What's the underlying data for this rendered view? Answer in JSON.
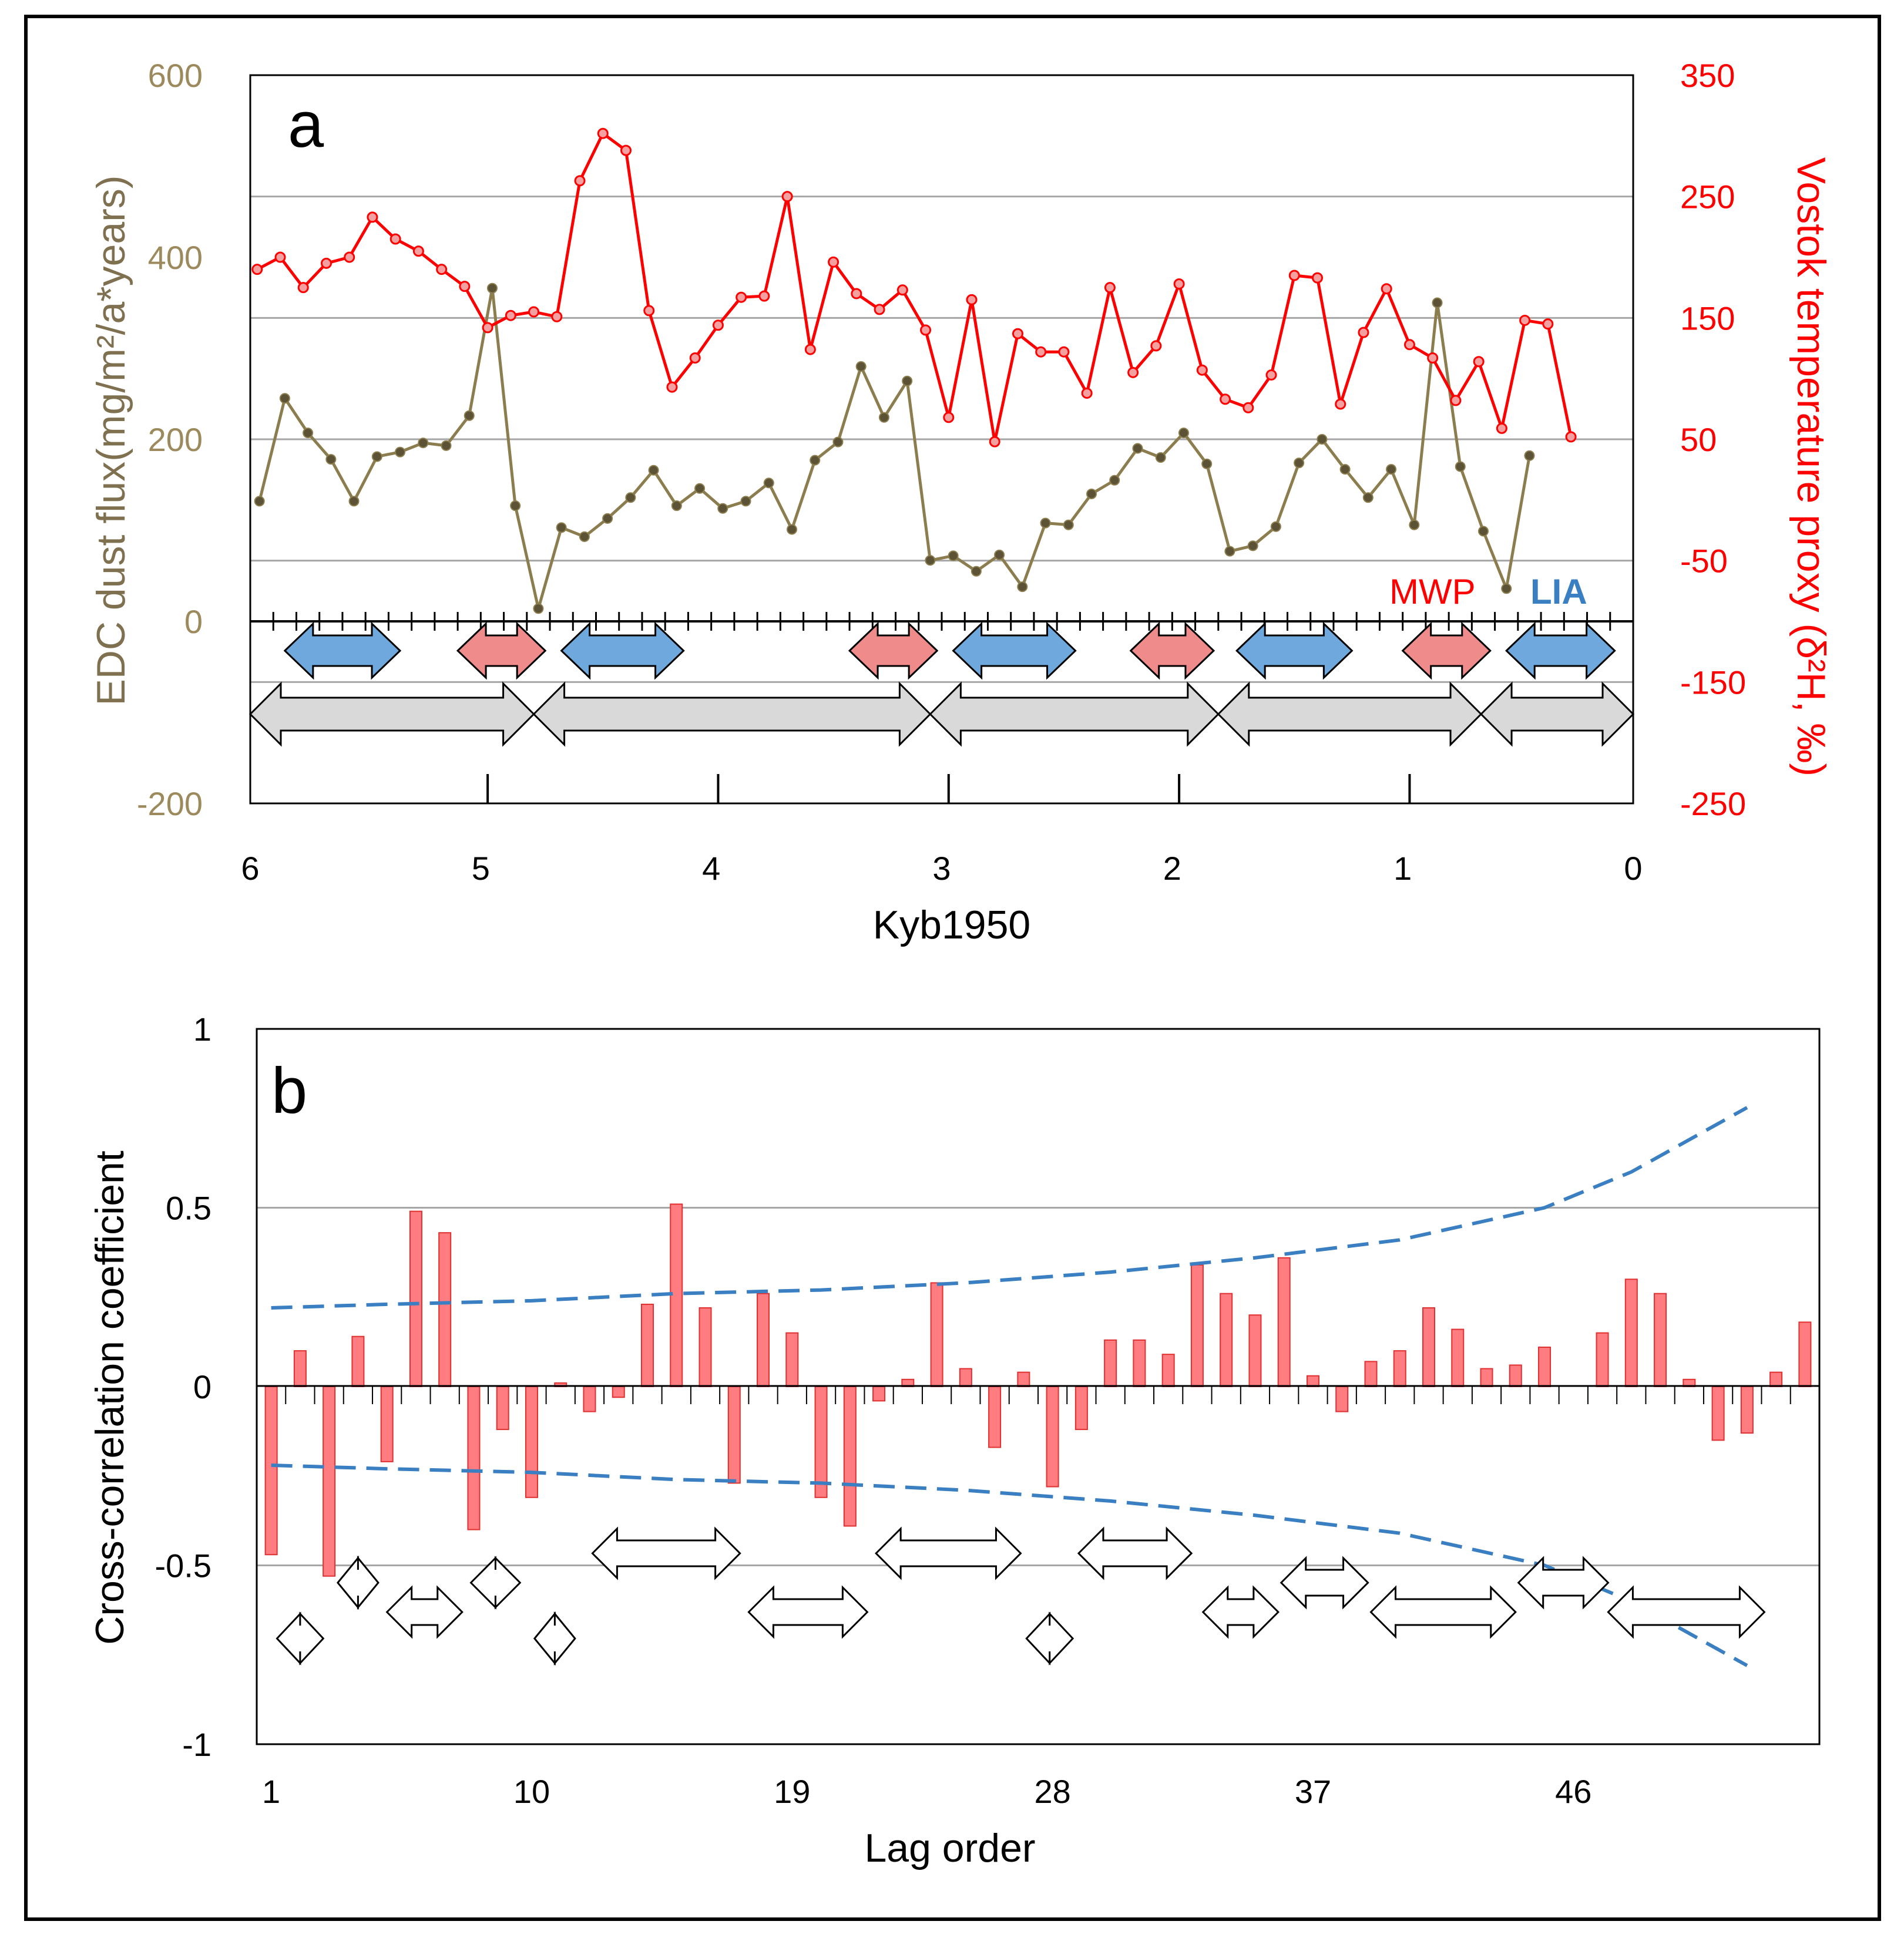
{
  "colors": {
    "dust": "#8B7D4E",
    "dust_marker": "#5C5236",
    "temperature": "#FF0000",
    "temperature_marker_fill": "#F5A0A0",
    "mwp": "#F08B8B",
    "lia": "#6FA8DC",
    "cycle_arrow": "#D9D9D9",
    "bar": "#FF7C80",
    "bar_stroke": "#E03030",
    "confidence": "#3A7FC1",
    "grid": "#A6A6A6"
  },
  "chart_data": [
    {
      "panel": "a",
      "type": "line",
      "xlabel": "Kyb1950",
      "xlim": [
        6,
        0
      ],
      "x_ticks": [
        "6",
        "5",
        "4",
        "3",
        "2",
        "1",
        "0"
      ],
      "ylabel_left": "EDC dust flux(mg/m²/a*years)",
      "ylim_left": [
        -200,
        600
      ],
      "y_ticks_left": [
        "600",
        "400",
        "200",
        "0",
        "-200"
      ],
      "ylabel_right": "Vostok temperature proxy (δ²H, ‰)",
      "ylim_right": [
        -250,
        350
      ],
      "y_ticks_right": [
        "350",
        "250",
        "150",
        "50",
        "-50",
        "-150",
        "-250"
      ],
      "annotations": {
        "mwp": "MWP",
        "lia": "LIA"
      },
      "series": [
        {
          "name": "EDC dust flux",
          "axis": "left",
          "x": [
            5.96,
            5.85,
            5.75,
            5.65,
            5.55,
            5.45,
            5.35,
            5.25,
            5.15,
            5.05,
            4.95,
            4.85,
            4.75,
            4.65,
            4.55,
            4.45,
            4.35,
            4.25,
            4.15,
            4.05,
            3.95,
            3.85,
            3.75,
            3.65,
            3.55,
            3.45,
            3.35,
            3.25,
            3.15,
            3.05,
            2.95,
            2.85,
            2.75,
            2.65,
            2.55,
            2.45,
            2.35,
            2.25,
            2.15,
            2.05,
            1.95,
            1.85,
            1.75,
            1.65,
            1.55,
            1.45,
            1.35,
            1.25,
            1.15,
            1.05,
            0.95,
            0.85,
            0.75,
            0.65,
            0.55,
            0.45
          ],
          "values": [
            132,
            245,
            207,
            178,
            132,
            181,
            186,
            196,
            193,
            226,
            366,
            127,
            14,
            103,
            93,
            113,
            136,
            166,
            127,
            146,
            124,
            132,
            152,
            101,
            177,
            197,
            280,
            224,
            264,
            67,
            72,
            55,
            73,
            38,
            108,
            106,
            140,
            155,
            190,
            180,
            207,
            173,
            77,
            83,
            104,
            174,
            200,
            167,
            136,
            167,
            106,
            350,
            170,
            99,
            36,
            182
          ]
        },
        {
          "name": "Vostok temperature proxy",
          "axis": "right",
          "x": [
            5.97,
            5.87,
            5.77,
            5.67,
            5.57,
            5.47,
            5.37,
            5.27,
            5.17,
            5.07,
            4.97,
            4.87,
            4.77,
            4.67,
            4.57,
            4.47,
            4.37,
            4.27,
            4.17,
            4.07,
            3.97,
            3.87,
            3.77,
            3.67,
            3.57,
            3.47,
            3.37,
            3.27,
            3.17,
            3.07,
            2.97,
            2.87,
            2.77,
            2.67,
            2.57,
            2.47,
            2.37,
            2.27,
            2.17,
            2.07,
            1.97,
            1.87,
            1.77,
            1.67,
            1.57,
            1.47,
            1.37,
            1.27,
            1.17,
            1.07,
            0.97,
            0.87,
            0.77,
            0.67,
            0.57,
            0.47,
            0.37,
            0.27
          ],
          "values": [
            190,
            200,
            175,
            195,
            200,
            233,
            215,
            205,
            190,
            176,
            142,
            152,
            155,
            151,
            263,
            302,
            288,
            156,
            93,
            117,
            144,
            167,
            168,
            250,
            124,
            196,
            170,
            157,
            173,
            140,
            68,
            165,
            48,
            137,
            122,
            122,
            88,
            175,
            105,
            127,
            178,
            107,
            83,
            76,
            103,
            185,
            183,
            79,
            138,
            174,
            128,
            117,
            82,
            114,
            59,
            148,
            145,
            52
          ]
        }
      ],
      "regime_arrows": [
        {
          "type": "LIA",
          "from_kyr": 5.85,
          "to_kyr": 5.35
        },
        {
          "type": "MWP",
          "from_kyr": 5.1,
          "to_kyr": 4.72
        },
        {
          "type": "LIA",
          "from_kyr": 4.65,
          "to_kyr": 4.12
        },
        {
          "type": "MWP",
          "from_kyr": 3.4,
          "to_kyr": 3.02
        },
        {
          "type": "LIA",
          "from_kyr": 2.95,
          "to_kyr": 2.42
        },
        {
          "type": "MWP",
          "from_kyr": 2.18,
          "to_kyr": 1.82
        },
        {
          "type": "LIA",
          "from_kyr": 1.72,
          "to_kyr": 1.22
        },
        {
          "type": "MWP",
          "from_kyr": 1.0,
          "to_kyr": 0.62
        },
        {
          "type": "LIA",
          "from_kyr": 0.55,
          "to_kyr": 0.08
        }
      ],
      "cycle_arrows": [
        {
          "from_kyr": 6.0,
          "to_kyr": 4.77
        },
        {
          "from_kyr": 4.77,
          "to_kyr": 3.05
        },
        {
          "from_kyr": 3.05,
          "to_kyr": 1.8
        },
        {
          "from_kyr": 1.8,
          "to_kyr": 0.66
        },
        {
          "from_kyr": 0.66,
          "to_kyr": 0.0
        }
      ],
      "cycle_boundaries_kyr": [
        4.97,
        3.97,
        2.97,
        1.97,
        0.97
      ]
    },
    {
      "panel": "b",
      "type": "bar",
      "xlabel": "Lag order",
      "ylabel": "Cross-correlation coefficient",
      "ylim": [
        -1,
        1
      ],
      "y_ticks": [
        "1",
        "0.5",
        "0",
        "-0.5",
        "-1"
      ],
      "x_ticks": [
        "1",
        "10",
        "19",
        "28",
        "37",
        "46"
      ],
      "categories": [
        1,
        2,
        3,
        4,
        5,
        6,
        7,
        8,
        9,
        10,
        11,
        12,
        13,
        14,
        15,
        16,
        17,
        18,
        19,
        20,
        21,
        22,
        23,
        24,
        25,
        26,
        27,
        28,
        29,
        30,
        31,
        32,
        33,
        34,
        35,
        36,
        37,
        38,
        39,
        40,
        41,
        42,
        43,
        44,
        45,
        46,
        47,
        48,
        49,
        50,
        51,
        52,
        53,
        54
      ],
      "values": [
        -0.47,
        0.1,
        -0.53,
        0.14,
        -0.21,
        0.49,
        0.43,
        -0.4,
        -0.12,
        -0.31,
        0.01,
        -0.07,
        -0.03,
        0.23,
        0.51,
        0.22,
        -0.27,
        0.26,
        0.15,
        -0.31,
        -0.39,
        -0.04,
        0.02,
        0.29,
        0.05,
        -0.17,
        0.04,
        -0.28,
        -0.12,
        0.13,
        0.13,
        0.09,
        0.34,
        0.26,
        0.2,
        0.36,
        0.03,
        -0.07,
        0.07,
        0.1,
        0.22,
        0.16,
        0.05,
        0.06,
        0.11,
        0,
        0.15,
        0.3,
        0.26,
        0.02,
        -0.15,
        -0.13,
        0.04,
        0.18
      ],
      "confidence_band": {
        "lag": [
          1,
          5,
          10,
          15,
          20,
          25,
          30,
          35,
          40,
          45,
          48,
          50,
          52
        ],
        "upper": [
          0.22,
          0.23,
          0.24,
          0.26,
          0.27,
          0.29,
          0.32,
          0.36,
          0.41,
          0.5,
          0.6,
          0.69,
          0.78
        ]
      },
      "period_arrows": [
        {
          "from_lag": 1.2,
          "to_lag": 2.8,
          "tier": 3
        },
        {
          "from_lag": 3.3,
          "to_lag": 4.7,
          "tier": 1
        },
        {
          "from_lag": 5.0,
          "to_lag": 7.6,
          "tier": 2
        },
        {
          "from_lag": 7.9,
          "to_lag": 9.6,
          "tier": 1
        },
        {
          "from_lag": 10.1,
          "to_lag": 11.5,
          "tier": 3
        },
        {
          "from_lag": 12.1,
          "to_lag": 17.2,
          "tier": 0
        },
        {
          "from_lag": 17.5,
          "to_lag": 21.6,
          "tier": 2
        },
        {
          "from_lag": 21.9,
          "to_lag": 26.9,
          "tier": 0
        },
        {
          "from_lag": 27.1,
          "to_lag": 28.7,
          "tier": 3
        },
        {
          "from_lag": 28.9,
          "to_lag": 32.8,
          "tier": 0
        },
        {
          "from_lag": 33.2,
          "to_lag": 35.8,
          "tier": 2
        },
        {
          "from_lag": 35.9,
          "to_lag": 38.9,
          "tier": 1
        },
        {
          "from_lag": 39.0,
          "to_lag": 44.0,
          "tier": 2
        },
        {
          "from_lag": 44.1,
          "to_lag": 47.2,
          "tier": 1
        },
        {
          "from_lag": 47.2,
          "to_lag": 52.6,
          "tier": 2
        }
      ]
    }
  ]
}
